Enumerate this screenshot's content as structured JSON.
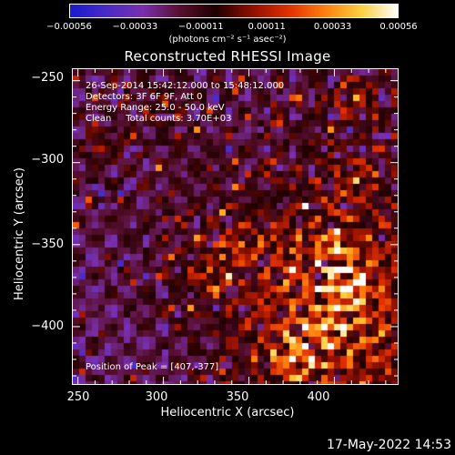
{
  "colorbar": {
    "ticks": [
      "-0.00056",
      "-0.00033",
      "-0.00011",
      "0.00011",
      "0.00033",
      "0.00056"
    ],
    "units": "(photons cm⁻² s⁻¹ asec⁻²)",
    "stops": [
      "#1a1ad0",
      "#4a2cc8",
      "#7a30b0",
      "#5a1030",
      "#200000",
      "#901000",
      "#e03000",
      "#ff8010",
      "#ffd040",
      "#ffffff"
    ]
  },
  "chart_data": {
    "type": "heatmap",
    "title": "Reconstructed RHESSI Image",
    "xlabel": "Heliocentric X (arcsec)",
    "ylabel": "Heliocentric Y (arcsec)",
    "xlim": [
      247,
      437
    ],
    "ylim": [
      -435,
      -243
    ],
    "xticks": [
      250,
      300,
      350,
      400
    ],
    "yticks": [
      -250,
      -300,
      -350,
      -400
    ],
    "colorscale_range": [
      -0.00056,
      0.00056
    ],
    "peak_position": [
      407,
      -377
    ],
    "bright_regions": [
      {
        "x": 413,
        "y": -260,
        "level": 0.7
      },
      {
        "x": 412,
        "y": -310,
        "level": 0.6
      },
      {
        "x": 400,
        "y": -355,
        "level": 0.7
      },
      {
        "x": 407,
        "y": -377,
        "level": 1.0
      },
      {
        "x": 395,
        "y": -400,
        "level": 0.8
      },
      {
        "x": 375,
        "y": -420,
        "level": 0.9
      },
      {
        "x": 345,
        "y": -350,
        "level": 0.6
      },
      {
        "x": 325,
        "y": -370,
        "level": 0.5
      },
      {
        "x": 265,
        "y": -290,
        "level": 0.4
      },
      {
        "x": 300,
        "y": -265,
        "level": 0.4
      }
    ]
  },
  "info_lines": [
    "26-Sep-2014 15:42:12.000 to 15:48:12.000",
    "Detectors: 3F 6F 9F, Att 0",
    "Energy Range: 25.0 - 50.0 keV",
    "Clean     Total counts: 3.70E+03"
  ],
  "peak_text": "Position of Peak = [407,-377]",
  "timestamp": "17-May-2022 14:53"
}
